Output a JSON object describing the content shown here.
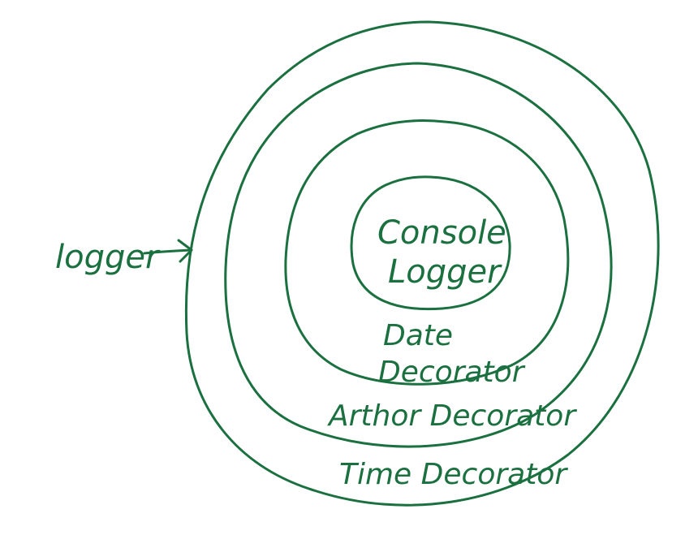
{
  "colors": {
    "ink": "#1b7040",
    "background": "#ffffff"
  },
  "labels": {
    "pointer": "logger",
    "core_line1": "Console",
    "core_line2": "Logger",
    "ring1_line1": "Date",
    "ring1_line2": "Decorator",
    "ring2": "Arthor Decorator",
    "ring3": "Time Decorator"
  }
}
